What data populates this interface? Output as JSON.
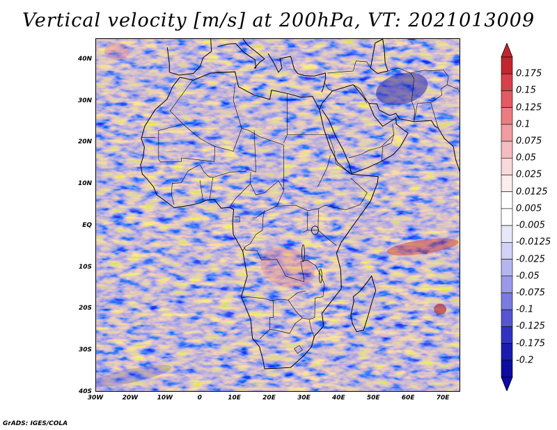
{
  "title": "Vertical velocity [m/s] at 200hPa, VT: 2021013009",
  "map": {
    "lat_labels": [
      "40N",
      "30N",
      "20N",
      "10N",
      "EQ",
      "10S",
      "20S",
      "30S",
      "40S"
    ],
    "lon_labels": [
      "30W",
      "20W",
      "10W",
      "0",
      "10E",
      "20E",
      "30E",
      "40E",
      "50E",
      "60E",
      "70E"
    ]
  },
  "colorbar": {
    "labels": [
      "0.175",
      "0.15",
      "0.125",
      "0.1",
      "0.075",
      "0.05",
      "0.025",
      "0.0125",
      "0.005",
      "-0.005",
      "-0.0125",
      "-0.025",
      "-0.05",
      "-0.075",
      "-0.1",
      "-0.125",
      "-0.175",
      "-0.2"
    ],
    "colors": [
      "#c1272d",
      "#d6404a",
      "#e35a63",
      "#ec7b82",
      "#f09ca1",
      "#f5bdc0",
      "#f9d9db",
      "#fcecec",
      "#ffffff",
      "#ffffff",
      "#e8e8fb",
      "#d2d2f6",
      "#b6b6ef",
      "#9a9ae8",
      "#7b7bdf",
      "#5656d2",
      "#3232c2",
      "#1b1bb0",
      "#0c0ca0"
    ]
  },
  "footer": "GrADS: IGES/COLA"
}
